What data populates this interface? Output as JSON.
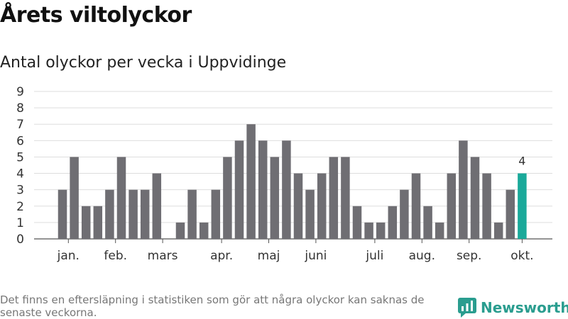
{
  "header": {
    "title": "Årets viltolyckor",
    "subtitle": "Antal olyckor per vecka i Uppvidinge"
  },
  "footer": {
    "note": "Det finns en eftersläpning i statistiken som gör att några olyckor kan saknas de senaste veckorna.",
    "brand": "Newsworthy"
  },
  "colors": {
    "bar": "#6f6e73",
    "highlight": "#1aa99a",
    "brand": "#2a9d8f",
    "grid": "#dddddd"
  },
  "icons": {
    "brand_logo": "bar-chart-speech-bubble-icon"
  },
  "chart_data": {
    "type": "bar",
    "title": "Antal olyckor per vecka i Uppvidinge",
    "xlabel": "",
    "ylabel": "",
    "ylim": [
      0,
      9
    ],
    "yticks": [
      0,
      1,
      2,
      3,
      4,
      5,
      6,
      7,
      8,
      9
    ],
    "grid": true,
    "weeks": [
      2,
      3,
      4,
      5,
      6,
      7,
      8,
      9,
      10,
      11,
      12,
      13,
      14,
      15,
      16,
      17,
      18,
      19,
      20,
      21,
      22,
      23,
      24,
      25,
      26,
      27,
      28,
      29,
      30,
      31,
      32,
      33,
      34,
      35,
      36,
      37,
      38,
      39,
      40,
      41
    ],
    "values": [
      3,
      5,
      2,
      2,
      3,
      5,
      3,
      3,
      4,
      0,
      1,
      3,
      1,
      3,
      5,
      6,
      7,
      6,
      5,
      6,
      4,
      3,
      4,
      5,
      5,
      2,
      1,
      1,
      2,
      3,
      4,
      2,
      1,
      4,
      6,
      5,
      4,
      1,
      3,
      4
    ],
    "month_labels": [
      {
        "label": "jan.",
        "week": 2.5
      },
      {
        "label": "feb.",
        "week": 6.5
      },
      {
        "label": "mars",
        "week": 10.5
      },
      {
        "label": "apr.",
        "week": 15.5
      },
      {
        "label": "maj",
        "week": 19.5
      },
      {
        "label": "juni",
        "week": 23.5
      },
      {
        "label": "juli",
        "week": 28.5
      },
      {
        "label": "aug.",
        "week": 32.5
      },
      {
        "label": "sep.",
        "week": 36.5
      },
      {
        "label": "okt.",
        "week": 41
      }
    ],
    "highlight_week": 41,
    "highlight_label": "4"
  }
}
